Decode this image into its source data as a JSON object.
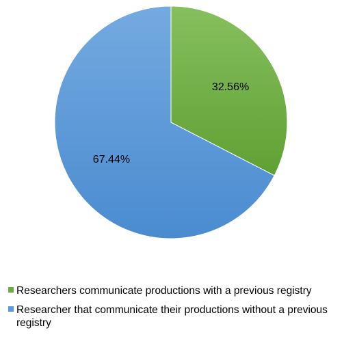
{
  "chart_data": {
    "type": "pie",
    "title": "",
    "series": [
      {
        "name": "Researchers communicate productions with a previous registry",
        "value": 32.56,
        "label": "32.56%",
        "color": "#70AD47"
      },
      {
        "name": "Researcher that communicate their productions without a previous registry",
        "value": 67.44,
        "label": "67.44%",
        "color": "#5B9BD5"
      }
    ],
    "legend_position": "bottom"
  }
}
